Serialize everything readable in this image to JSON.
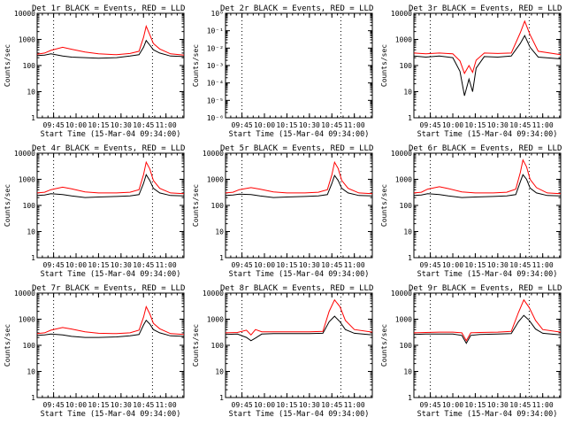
{
  "colors": {
    "events": "#000000",
    "lld": "#ff0000",
    "axes": "#000000",
    "background": "#ffffff"
  },
  "xaxis": {
    "label": "Start Time (15-Mar-04 09:34:00)",
    "tick_labels": [
      "09:45",
      "10:00",
      "10:15",
      "10:30",
      "10:45",
      "11:00"
    ],
    "range_hours": [
      9.567,
      11.2
    ]
  },
  "ylabel": "Counts/sec",
  "chart_data": [
    {
      "type": "line",
      "title": "Det 1r BLACK = Events, RED = LLD",
      "yscale": "log",
      "ylim": [
        1,
        10000
      ],
      "ytick_labels": [
        "1",
        "10",
        "100",
        "1000",
        "10000"
      ],
      "x": [
        9.567,
        9.65,
        9.72,
        9.85,
        9.95,
        10.1,
        10.25,
        10.45,
        10.6,
        10.7,
        10.75,
        10.78,
        10.82,
        10.86,
        10.93,
        11.05,
        11.2
      ],
      "series": [
        {
          "color": "lld",
          "values": [
            270,
            300,
            380,
            500,
            420,
            330,
            280,
            260,
            290,
            350,
            1200,
            3200,
            1500,
            700,
            430,
            280,
            250
          ]
        },
        {
          "color": "events",
          "values": [
            240,
            250,
            280,
            230,
            210,
            200,
            190,
            200,
            230,
            260,
            500,
            900,
            600,
            400,
            300,
            230,
            220
          ]
        }
      ],
      "marker_text": ""
    },
    {
      "type": "line",
      "title": "Det 2r BLACK = Events, RED = LLD",
      "yscale": "log",
      "ylim": [
        1e-06,
        1
      ],
      "ytick_labels": [
        "10⁰",
        "10⁻¹",
        "10⁻²",
        "10⁻³",
        "10⁻⁴",
        "10⁻⁵",
        "10⁻⁶"
      ],
      "x": [],
      "series": [],
      "marker_text": ""
    },
    {
      "type": "line",
      "title": "Det 3r BLACK = Events, RED = LLD",
      "yscale": "log",
      "ylim": [
        1,
        10000
      ],
      "ytick_labels": [
        "1",
        "10",
        "100",
        "1000",
        "10000"
      ],
      "x": [
        9.567,
        9.7,
        9.85,
        10.0,
        10.08,
        10.13,
        10.18,
        10.22,
        10.26,
        10.35,
        10.5,
        10.65,
        10.75,
        10.8,
        10.86,
        10.95,
        11.2
      ],
      "series": [
        {
          "color": "lld",
          "values": [
            300,
            280,
            300,
            280,
            150,
            50,
            100,
            55,
            160,
            300,
            290,
            300,
            1800,
            5000,
            1500,
            350,
            260
          ]
        },
        {
          "color": "events",
          "values": [
            230,
            210,
            230,
            200,
            60,
            7,
            30,
            10,
            80,
            220,
            210,
            230,
            700,
            1400,
            500,
            210,
            180
          ]
        }
      ],
      "marker_text": ""
    },
    {
      "type": "line",
      "title": "Det 4r BLACK = Events, RED = LLD",
      "yscale": "log",
      "ylim": [
        1,
        10000
      ],
      "ytick_labels": [
        "1",
        "10",
        "100",
        "1000",
        "10000"
      ],
      "x": [
        9.567,
        9.65,
        9.72,
        9.85,
        9.95,
        10.1,
        10.25,
        10.45,
        10.6,
        10.7,
        10.75,
        10.78,
        10.82,
        10.86,
        10.93,
        11.05,
        11.2
      ],
      "series": [
        {
          "color": "lld",
          "values": [
            300,
            320,
            400,
            500,
            430,
            330,
            300,
            300,
            320,
            400,
            1500,
            4500,
            2500,
            900,
            450,
            300,
            280
          ]
        },
        {
          "color": "events",
          "values": [
            240,
            250,
            280,
            260,
            230,
            200,
            210,
            220,
            230,
            260,
            700,
            1500,
            900,
            450,
            300,
            240,
            230
          ]
        }
      ],
      "marker_text": ""
    },
    {
      "type": "line",
      "title": "Det 5r BLACK = Events, RED = LLD",
      "yscale": "log",
      "ylim": [
        1,
        10000
      ],
      "ytick_labels": [
        "1",
        "10",
        "100",
        "1000",
        "10000"
      ],
      "x": [
        9.567,
        9.65,
        9.72,
        9.85,
        9.95,
        10.1,
        10.25,
        10.45,
        10.6,
        10.7,
        10.75,
        10.78,
        10.82,
        10.86,
        10.93,
        11.05,
        11.2
      ],
      "series": [
        {
          "color": "lld",
          "values": [
            300,
            320,
            400,
            480,
            420,
            330,
            300,
            300,
            320,
            400,
            1500,
            4500,
            2600,
            900,
            450,
            300,
            280
          ]
        },
        {
          "color": "events",
          "values": [
            240,
            250,
            270,
            260,
            230,
            200,
            210,
            220,
            230,
            260,
            700,
            1400,
            900,
            450,
            300,
            240,
            230
          ]
        }
      ],
      "marker_text": ""
    },
    {
      "type": "line",
      "title": "Det 6r BLACK = Events, RED = LLD",
      "yscale": "log",
      "ylim": [
        1,
        10000
      ],
      "ytick_labels": [
        "1",
        "10",
        "100",
        "1000",
        "10000"
      ],
      "x": [
        9.567,
        9.65,
        9.72,
        9.85,
        9.95,
        10.1,
        10.25,
        10.45,
        10.6,
        10.7,
        10.75,
        10.78,
        10.82,
        10.86,
        10.93,
        11.05,
        11.2
      ],
      "series": [
        {
          "color": "lld",
          "values": [
            300,
            320,
            420,
            520,
            440,
            330,
            300,
            300,
            320,
            420,
            1800,
            5500,
            3000,
            1000,
            480,
            300,
            280
          ]
        },
        {
          "color": "events",
          "values": [
            240,
            250,
            280,
            260,
            230,
            200,
            210,
            220,
            230,
            260,
            800,
            1500,
            1000,
            460,
            300,
            240,
            230
          ]
        }
      ],
      "marker_text": ""
    },
    {
      "type": "line",
      "title": "Det 7r BLACK = Events, RED = LLD",
      "yscale": "log",
      "ylim": [
        1,
        10000
      ],
      "ytick_labels": [
        "1",
        "10",
        "100",
        "1000",
        "10000"
      ],
      "x": [
        9.567,
        9.65,
        9.72,
        9.85,
        9.95,
        10.1,
        10.25,
        10.45,
        10.6,
        10.7,
        10.75,
        10.78,
        10.82,
        10.86,
        10.93,
        11.05,
        11.2
      ],
      "series": [
        {
          "color": "lld",
          "values": [
            280,
            300,
            380,
            480,
            420,
            330,
            290,
            280,
            300,
            380,
            1200,
            3000,
            1600,
            700,
            430,
            280,
            260
          ]
        },
        {
          "color": "events",
          "values": [
            240,
            250,
            270,
            250,
            220,
            200,
            200,
            210,
            230,
            260,
            600,
            900,
            650,
            400,
            300,
            230,
            220
          ]
        }
      ],
      "marker_text": ""
    },
    {
      "type": "line",
      "title": "Det 8r BLACK = Events, RED = LLD",
      "yscale": "log",
      "ylim": [
        1,
        10000
      ],
      "ytick_labels": [
        "1",
        "10",
        "100",
        "1000",
        "10000"
      ],
      "x": [
        9.567,
        9.7,
        9.8,
        9.85,
        9.9,
        9.97,
        10.1,
        10.3,
        10.5,
        10.65,
        10.72,
        10.78,
        10.84,
        10.9,
        11.0,
        11.2
      ],
      "series": [
        {
          "color": "lld",
          "values": [
            300,
            310,
            380,
            250,
            400,
            330,
            330,
            330,
            330,
            340,
            2000,
            5500,
            3000,
            900,
            400,
            320
          ]
        },
        {
          "color": "events",
          "values": [
            260,
            270,
            200,
            150,
            190,
            270,
            280,
            280,
            280,
            290,
            800,
            1300,
            800,
            400,
            290,
            250
          ]
        }
      ],
      "marker_text": ""
    },
    {
      "type": "line",
      "title": "Det 9r BLACK = Events, RED = LLD",
      "yscale": "log",
      "ylim": [
        1,
        10000
      ],
      "ytick_labels": [
        "1",
        "10",
        "100",
        "1000",
        "10000"
      ],
      "x": [
        9.567,
        9.7,
        9.85,
        10.0,
        10.1,
        10.15,
        10.2,
        10.3,
        10.5,
        10.65,
        10.73,
        10.79,
        10.85,
        10.92,
        11.0,
        11.2
      ],
      "series": [
        {
          "color": "lld",
          "values": [
            300,
            310,
            320,
            320,
            300,
            150,
            300,
            310,
            320,
            340,
            1800,
            5500,
            2800,
            900,
            400,
            320
          ]
        },
        {
          "color": "events",
          "values": [
            260,
            270,
            270,
            270,
            240,
            120,
            240,
            260,
            270,
            280,
            800,
            1400,
            900,
            420,
            290,
            250
          ]
        }
      ],
      "marker_text": ""
    }
  ]
}
